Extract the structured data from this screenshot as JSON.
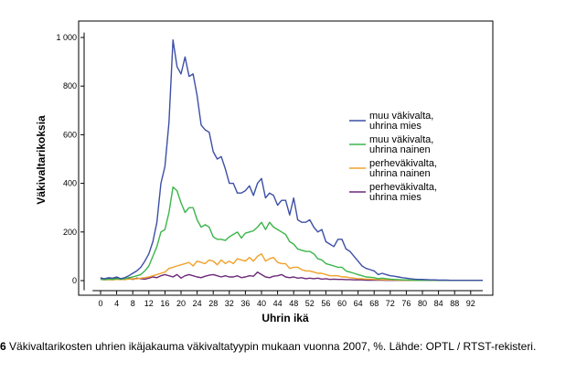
{
  "caption": {
    "number": "6",
    "text": " Väkivaltarikosten uhrien ikäjakauma väkivaltatyypin mukaan vuonna 2007, %. Lähde: OPTL / RTST-rekisteri."
  },
  "chart_data": {
    "type": "line",
    "xlabel": "Uhrin ikä",
    "ylabel": "Väkivaltarikoksia",
    "xlim": [
      -2,
      95
    ],
    "ylim": [
      -40,
      1020
    ],
    "x_ticks": [
      0,
      4,
      8,
      12,
      16,
      20,
      24,
      28,
      32,
      36,
      40,
      44,
      48,
      52,
      56,
      60,
      64,
      68,
      72,
      76,
      80,
      84,
      88,
      92
    ],
    "y_ticks": [
      0,
      200,
      400,
      600,
      800,
      1000
    ],
    "y_tick_labels": [
      "0",
      "200",
      "400",
      "600",
      "800",
      "1 000"
    ],
    "grid": false,
    "legend_position": "right",
    "x": [
      0,
      1,
      2,
      3,
      4,
      5,
      6,
      7,
      8,
      9,
      10,
      11,
      12,
      13,
      14,
      15,
      16,
      17,
      18,
      19,
      20,
      21,
      22,
      23,
      24,
      25,
      26,
      27,
      28,
      29,
      30,
      31,
      32,
      33,
      34,
      35,
      36,
      37,
      38,
      39,
      40,
      41,
      42,
      43,
      44,
      45,
      46,
      47,
      48,
      49,
      50,
      51,
      52,
      53,
      54,
      55,
      56,
      57,
      58,
      59,
      60,
      61,
      62,
      63,
      64,
      65,
      66,
      67,
      68,
      69,
      70,
      71,
      72,
      73,
      74,
      75,
      76,
      77,
      78,
      79,
      80,
      81,
      82,
      83,
      84,
      85,
      86,
      87,
      88,
      89,
      90,
      91,
      92,
      93,
      94,
      95
    ],
    "series": [
      {
        "name": "muu väkivalta, uhrina mies",
        "color": "#3d4fa6",
        "values": [
          10,
          8,
          12,
          10,
          15,
          8,
          12,
          20,
          30,
          40,
          55,
          80,
          110,
          160,
          240,
          400,
          470,
          650,
          990,
          880,
          850,
          920,
          840,
          850,
          760,
          640,
          620,
          610,
          530,
          500,
          510,
          460,
          400,
          400,
          360,
          360,
          370,
          390,
          350,
          400,
          420,
          340,
          360,
          350,
          310,
          330,
          330,
          270,
          340,
          250,
          240,
          240,
          250,
          220,
          200,
          210,
          160,
          150,
          140,
          170,
          170,
          130,
          120,
          100,
          80,
          60,
          50,
          45,
          40,
          25,
          30,
          25,
          20,
          18,
          15,
          12,
          10,
          8,
          6,
          5,
          5,
          4,
          3,
          3,
          2,
          2,
          2,
          1,
          1,
          1,
          1,
          1,
          1,
          1,
          1,
          1
        ]
      },
      {
        "name": "muu väkivalta, uhrina nainen",
        "color": "#3bb54a",
        "values": [
          5,
          4,
          6,
          5,
          8,
          6,
          8,
          12,
          15,
          20,
          25,
          40,
          60,
          100,
          140,
          200,
          210,
          280,
          385,
          370,
          320,
          280,
          300,
          300,
          250,
          220,
          230,
          220,
          180,
          170,
          170,
          165,
          180,
          190,
          200,
          175,
          195,
          200,
          205,
          220,
          240,
          210,
          240,
          220,
          210,
          200,
          190,
          160,
          150,
          130,
          125,
          120,
          120,
          110,
          90,
          85,
          70,
          65,
          60,
          55,
          55,
          40,
          35,
          30,
          25,
          20,
          15,
          14,
          12,
          8,
          10,
          8,
          6,
          5,
          4,
          3,
          3,
          2,
          2,
          1,
          1,
          1,
          1,
          1,
          1,
          1,
          1,
          1,
          1,
          1,
          1,
          1,
          1,
          1,
          1,
          1
        ]
      },
      {
        "name": "perheväkivalta, uhrina nainen",
        "color": "#f0a22a",
        "values": [
          5,
          3,
          4,
          3,
          5,
          4,
          5,
          6,
          8,
          7,
          10,
          12,
          15,
          20,
          25,
          30,
          35,
          50,
          55,
          60,
          65,
          70,
          75,
          60,
          80,
          75,
          70,
          85,
          80,
          65,
          85,
          70,
          80,
          70,
          90,
          85,
          80,
          95,
          80,
          100,
          110,
          80,
          90,
          95,
          75,
          70,
          70,
          50,
          55,
          55,
          45,
          40,
          40,
          35,
          30,
          30,
          25,
          20,
          20,
          20,
          15,
          15,
          12,
          10,
          8,
          8,
          6,
          6,
          5,
          4,
          4,
          3,
          3,
          3,
          2,
          2,
          2,
          1,
          1,
          1,
          1,
          1,
          1,
          1,
          1,
          1,
          1,
          1,
          1,
          1,
          1,
          1,
          1,
          1,
          1,
          1
        ]
      },
      {
        "name": "perheväkivalta, uhrina mies",
        "color": "#6b2a78",
        "values": [
          12,
          5,
          10,
          4,
          12,
          6,
          4,
          10,
          5,
          10,
          8,
          6,
          10,
          15,
          12,
          20,
          25,
          20,
          15,
          25,
          10,
          20,
          25,
          20,
          15,
          12,
          18,
          22,
          25,
          20,
          15,
          20,
          15,
          15,
          20,
          12,
          15,
          20,
          18,
          35,
          25,
          15,
          12,
          18,
          20,
          25,
          15,
          12,
          15,
          10,
          12,
          8,
          10,
          8,
          10,
          6,
          8,
          5,
          6,
          5,
          5,
          4,
          4,
          3,
          3,
          3,
          2,
          2,
          2,
          2,
          2,
          1,
          1,
          1,
          1,
          1,
          1,
          1,
          1,
          1,
          1,
          1,
          1,
          1,
          1,
          1,
          1,
          1,
          1,
          1,
          1,
          1,
          1,
          1,
          1,
          1
        ]
      }
    ]
  }
}
